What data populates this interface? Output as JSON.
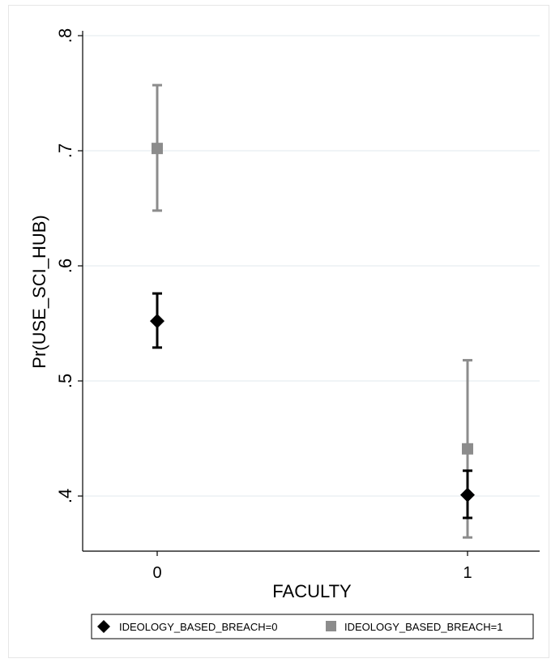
{
  "chart_data": {
    "type": "scatter",
    "title": "",
    "xlabel": "FACULTY",
    "ylabel": "Pr(USE_SCI_HUB)",
    "x_categories": [
      "0",
      "1"
    ],
    "ylim": [
      0.35,
      0.82
    ],
    "yticks": [
      0.4,
      0.5,
      0.6,
      0.7,
      0.8
    ],
    "ytick_labels": [
      ".4",
      ".5",
      ".6",
      ".7",
      ".8"
    ],
    "grid": true,
    "legend_position": "bottom",
    "series": [
      {
        "name": "IDEOLOGY_BASED_BREACH=0",
        "marker": "diamond",
        "color": "#000000",
        "points": [
          {
            "x": "0",
            "y": 0.552,
            "lower": 0.529,
            "upper": 0.576
          },
          {
            "x": "1",
            "y": 0.401,
            "lower": 0.381,
            "upper": 0.422
          }
        ]
      },
      {
        "name": "IDEOLOGY_BASED_BREACH=1",
        "marker": "square",
        "color": "#8c8c8c",
        "points": [
          {
            "x": "0",
            "y": 0.702,
            "lower": 0.648,
            "upper": 0.757
          },
          {
            "x": "1",
            "y": 0.441,
            "lower": 0.364,
            "upper": 0.518
          }
        ]
      }
    ]
  }
}
